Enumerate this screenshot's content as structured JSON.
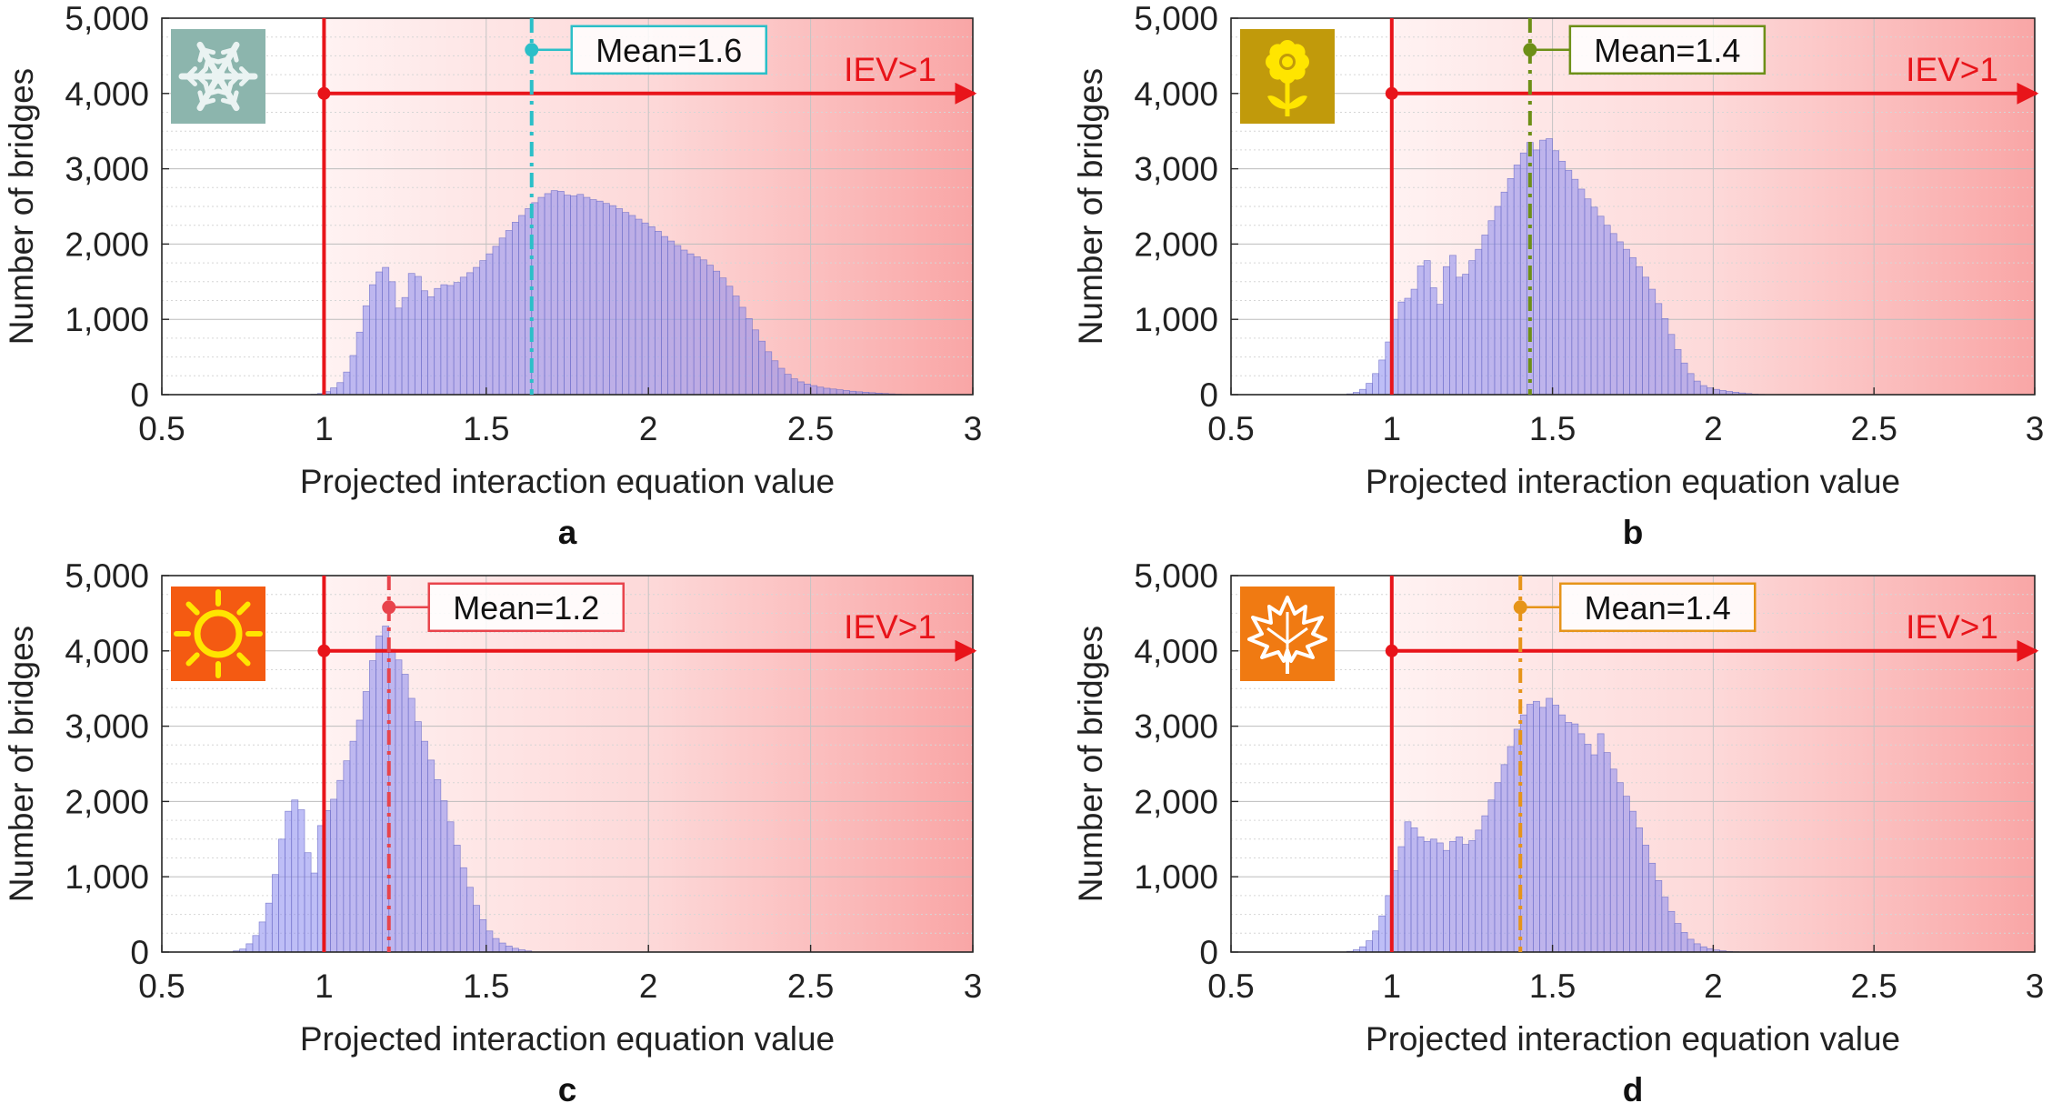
{
  "chart_data": [
    {
      "type": "bar",
      "panel_label": "a",
      "season_icon": "snowflake-icon",
      "icon_bg": "#8cb5ad",
      "icon_fg": "#eaf3f2",
      "accent": "#2bbfc8",
      "xlabel": "Projected interaction equation value",
      "ylabel": "Number of bridges",
      "xlim": [
        0.5,
        3
      ],
      "ylim": [
        0,
        5000
      ],
      "xticks": [
        "0.5",
        "1",
        "1.5",
        "2",
        "2.5",
        "3"
      ],
      "yticks": [
        "0",
        "1,000",
        "2,000",
        "3,000",
        "4,000",
        "5,000"
      ],
      "threshold": 1,
      "threshold_label": "IEV>1",
      "mean": 1.64,
      "mean_label": "Mean=1.6",
      "bin_start": 0.96,
      "bin_width": 0.02,
      "values": [
        5,
        15,
        40,
        90,
        160,
        300,
        520,
        830,
        1180,
        1460,
        1630,
        1690,
        1500,
        1150,
        1290,
        1610,
        1570,
        1380,
        1300,
        1410,
        1460,
        1450,
        1490,
        1560,
        1620,
        1690,
        1780,
        1870,
        1970,
        2080,
        2180,
        2290,
        2380,
        2470,
        2550,
        2620,
        2670,
        2710,
        2700,
        2650,
        2640,
        2660,
        2620,
        2590,
        2570,
        2540,
        2510,
        2470,
        2420,
        2380,
        2330,
        2280,
        2230,
        2170,
        2100,
        2040,
        1980,
        1920,
        1870,
        1830,
        1790,
        1720,
        1640,
        1550,
        1440,
        1310,
        1160,
        1010,
        860,
        710,
        570,
        450,
        350,
        270,
        210,
        170,
        140,
        120,
        100,
        85,
        75,
        65,
        55,
        45,
        38,
        32,
        26,
        20,
        15,
        10,
        6,
        3
      ]
    },
    {
      "type": "bar",
      "panel_label": "b",
      "season_icon": "flower-icon",
      "icon_bg": "#c19a0b",
      "icon_fg": "#ffe500",
      "accent": "#6d8f17",
      "xlabel": "Projected interaction equation value",
      "ylabel": "Number of bridges",
      "xlim": [
        0.5,
        3
      ],
      "ylim": [
        0,
        5000
      ],
      "xticks": [
        "0.5",
        "1",
        "1.5",
        "2",
        "2.5",
        "3"
      ],
      "yticks": [
        "0",
        "1,000",
        "2,000",
        "3,000",
        "4,000",
        "5,000"
      ],
      "threshold": 1,
      "threshold_label": "IEV>1",
      "mean": 1.43,
      "mean_label": "Mean=1.4",
      "bin_start": 0.86,
      "bin_width": 0.02,
      "values": [
        10,
        30,
        70,
        150,
        280,
        460,
        700,
        1000,
        1230,
        1280,
        1400,
        1710,
        1780,
        1420,
        1200,
        1700,
        1850,
        1560,
        1600,
        1780,
        1930,
        2120,
        2310,
        2500,
        2690,
        2870,
        3050,
        3210,
        3350,
        3250,
        3380,
        3400,
        3240,
        3100,
        2980,
        2860,
        2730,
        2600,
        2490,
        2370,
        2250,
        2140,
        2030,
        1930,
        1820,
        1700,
        1560,
        1400,
        1210,
        1010,
        800,
        600,
        420,
        280,
        180,
        120,
        90,
        70,
        55,
        42,
        32,
        22,
        14,
        8,
        4
      ]
    },
    {
      "type": "bar",
      "panel_label": "c",
      "season_icon": "sun-icon",
      "icon_bg": "#f45a12",
      "icon_fg": "#ffe500",
      "accent": "#e8444c",
      "xlabel": "Projected interaction equation value",
      "ylabel": "Number of bridges",
      "xlim": [
        0.5,
        3
      ],
      "ylim": [
        0,
        5000
      ],
      "xticks": [
        "0.5",
        "1",
        "1.5",
        "2",
        "2.5",
        "3"
      ],
      "yticks": [
        "0",
        "1,000",
        "2,000",
        "3,000",
        "4,000",
        "5,000"
      ],
      "threshold": 1,
      "threshold_label": "IEV>1",
      "mean": 1.2,
      "mean_label": "Mean=1.2",
      "bin_start": 0.72,
      "bin_width": 0.02,
      "values": [
        15,
        40,
        110,
        220,
        400,
        650,
        1030,
        1500,
        1870,
        2020,
        1890,
        1320,
        1050,
        1680,
        1880,
        2030,
        2280,
        2540,
        2800,
        3080,
        3460,
        3870,
        4200,
        4330,
        4020,
        3880,
        3690,
        3370,
        3060,
        2800,
        2550,
        2290,
        2010,
        1730,
        1420,
        1120,
        860,
        620,
        430,
        280,
        180,
        120,
        80,
        50,
        30,
        15
      ]
    },
    {
      "type": "bar",
      "panel_label": "d",
      "season_icon": "maple-leaf-icon",
      "icon_bg": "#f07a12",
      "icon_fg": "#ffffff",
      "accent": "#e69419",
      "xlabel": "Projected interaction equation value",
      "ylabel": "Number of bridges",
      "xlim": [
        0.5,
        3
      ],
      "ylim": [
        0,
        5000
      ],
      "xticks": [
        "0.5",
        "1",
        "1.5",
        "2",
        "2.5",
        "3"
      ],
      "yticks": [
        "0",
        "1,000",
        "2,000",
        "3,000",
        "4,000",
        "5,000"
      ],
      "threshold": 1,
      "threshold_label": "IEV>1",
      "mean": 1.4,
      "mean_label": "Mean=1.4",
      "bin_start": 0.86,
      "bin_width": 0.02,
      "values": [
        10,
        30,
        70,
        150,
        280,
        480,
        750,
        1080,
        1400,
        1730,
        1650,
        1530,
        1470,
        1500,
        1450,
        1350,
        1470,
        1530,
        1430,
        1480,
        1620,
        1810,
        2020,
        2250,
        2490,
        2730,
        2960,
        3150,
        3290,
        3330,
        3250,
        3370,
        3280,
        3150,
        3050,
        3030,
        2900,
        2760,
        2620,
        2900,
        2650,
        2430,
        2250,
        2070,
        1870,
        1650,
        1420,
        1180,
        950,
        730,
        540,
        380,
        260,
        170,
        110,
        70,
        45,
        28,
        16,
        8,
        4
      ]
    }
  ]
}
